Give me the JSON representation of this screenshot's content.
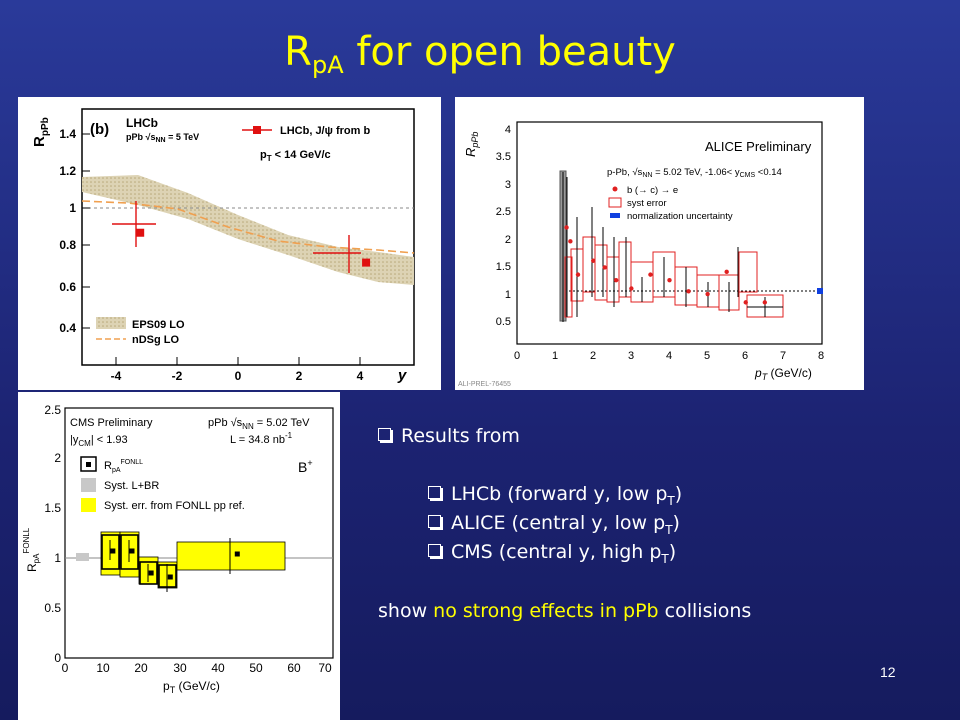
{
  "title": {
    "main": "R",
    "sub": "pA",
    "rest": " for open beauty"
  },
  "bullets": {
    "intro": "Results from",
    "items": [
      {
        "pre": "LHCb (forward y, low p",
        "sub": "T",
        "post": ")"
      },
      {
        "pre": "ALICE (central y, low p",
        "sub": "T",
        "post": ")"
      },
      {
        "pre": "CMS (central y, high p",
        "sub": "T",
        "post": ")"
      }
    ],
    "conclusion_pre": "show ",
    "conclusion_hl": "no strong effects in pPb",
    "conclusion_post": " collisions"
  },
  "page_number": "12",
  "colors": {
    "title": "#ffff00",
    "highlight": "#ffff00",
    "text": "#ffffff"
  },
  "lhcb": {
    "panel_label": "(b)",
    "experiment": "LHCb",
    "system": "pPb √s",
    "system_sub": "NN",
    "system_tail": " = 5 TeV",
    "pt_cut": "p",
    "pt_cut_sub": "T",
    "pt_cut_tail": " < 14 GeV/c",
    "legend_data": "LHCb, J/ψ from b",
    "legend_eps": "EPS09 LO",
    "legend_ndsg": "nDSg LO",
    "ylabel": "R",
    "ylabel_sub": "pPb",
    "xlabel": "y",
    "yticks": [
      "0.4",
      "0.6",
      "0.8",
      "1",
      "1.2",
      "1.4"
    ],
    "xticks": [
      "-4",
      "-2",
      "0",
      "2",
      "4"
    ],
    "chart_data": {
      "type": "scatter",
      "x": [
        -3.3,
        3.3
      ],
      "y": [
        0.92,
        0.78
      ],
      "xlim": [
        -5,
        4.7
      ],
      "ylim": [
        0.3,
        1.5
      ]
    }
  },
  "alice": {
    "title": "ALICE Preliminary",
    "system": "p-Pb, √s",
    "system_sub": "NN",
    "system_tail": " = 5.02 TeV, -1.06< y",
    "system_tail_sub": "CMS",
    "system_tail_end": " <0.14",
    "legend_data": "b (→ c) → e",
    "legend_syst": "syst error",
    "legend_norm": "normalization uncertainty",
    "ylabel": "R",
    "ylabel_sub": "pPb",
    "xlabel": "p",
    "xlabel_sub": "T",
    "xlabel_tail": " (GeV/c)",
    "footer": "ALI-PREL-76455",
    "yticks": [
      "0.5",
      "1",
      "1.5",
      "2",
      "2.5",
      "3",
      "3.5",
      "4"
    ],
    "xticks": [
      "0",
      "1",
      "2",
      "3",
      "4",
      "5",
      "6",
      "7",
      "8"
    ],
    "chart_data": {
      "type": "scatter",
      "x": [
        1.3,
        1.4,
        1.6,
        2.0,
        2.3,
        2.6,
        3.0,
        3.5,
        4.0,
        4.5,
        5.0,
        5.5,
        6.0,
        6.5
      ],
      "y": [
        2.1,
        1.85,
        1.25,
        1.5,
        1.38,
        1.15,
        1.0,
        1.25,
        1.15,
        0.95,
        0.9,
        1.3,
        0.75,
        0.75
      ],
      "xlim": [
        0,
        8
      ],
      "ylim": [
        0,
        4
      ]
    }
  },
  "cms": {
    "title": "CMS Preliminary",
    "system": "pPb √s",
    "system_sub": "NN",
    "system_tail": " = 5.02 TeV",
    "rapidity": "|y",
    "rapidity_sub": "CM",
    "rapidity_tail": "| < 1.93",
    "lumi": "L = 34.8 nb",
    "lumi_sup": "-1",
    "particle": "B",
    "particle_sup": "+",
    "legend_data": "R",
    "legend_data_sub": "pA",
    "legend_data_sup": "FONLL",
    "legend_syst": "Syst. L+BR",
    "legend_fonll": "Syst. err. from FONLL pp ref.",
    "ylabel": "R",
    "ylabel_sub": "pA",
    "ylabel_sup": "FONLL",
    "xlabel": "p",
    "xlabel_sub": "T",
    "xlabel_tail": " (GeV/c)",
    "yticks": [
      "0",
      "0.5",
      "1",
      "1.5",
      "2",
      "2.5"
    ],
    "xticks": [
      "0",
      "10",
      "20",
      "30",
      "40",
      "50",
      "60",
      "70"
    ],
    "chart_data": {
      "type": "scatter",
      "x": [
        12.5,
        17.5,
        22.5,
        27.5,
        45
      ],
      "y": [
        1.07,
        1.07,
        0.85,
        0.81,
        1.04
      ],
      "xlim": [
        0,
        70
      ],
      "ylim": [
        0,
        2.5
      ]
    }
  }
}
